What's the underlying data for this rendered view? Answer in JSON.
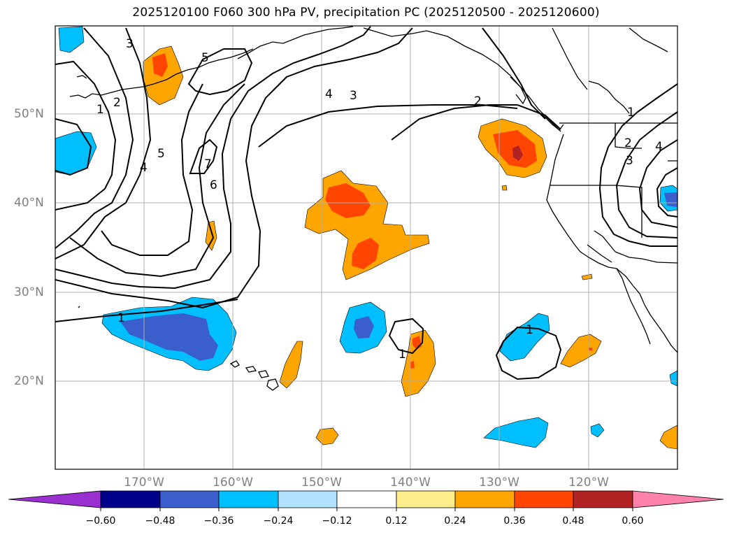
{
  "title": "2025120100 F060 300 hPa PV, precipitation PC (2025120500 - 2025120600)",
  "map": {
    "lat_ticks": [
      {
        "label": "50°N",
        "lat": 50
      },
      {
        "label": "40°N",
        "lat": 40
      },
      {
        "label": "30°N",
        "lat": 30
      },
      {
        "label": "20°N",
        "lat": 20
      }
    ],
    "lon_ticks": [
      {
        "label": "170°W",
        "lon": -170
      },
      {
        "label": "160°W",
        "lon": -160
      },
      {
        "label": "150°W",
        "lon": -150
      },
      {
        "label": "140°W",
        "lon": -140
      },
      {
        "label": "130°W",
        "lon": -130
      },
      {
        "label": "120°W",
        "lon": -120
      }
    ],
    "extent": {
      "lon": [
        -180,
        -110
      ],
      "lat": [
        10,
        60
      ]
    },
    "grid": true,
    "pv_contour_labels": [
      "1",
      "2",
      "3",
      "4",
      "5",
      "6",
      "7"
    ]
  },
  "colorbar": {
    "ticks": [
      "−0.60",
      "−0.48",
      "−0.36",
      "−0.24",
      "−0.12",
      "0.12",
      "0.24",
      "0.36",
      "0.48",
      "0.60"
    ],
    "colors": [
      "#9b30d0",
      "#00008b",
      "#3a5fcd",
      "#00bfff",
      "#b0e2ff",
      "#ffffff",
      "#ffec8b",
      "#ffa500",
      "#ff4500",
      "#b22222",
      "#ff82ab"
    ]
  }
}
